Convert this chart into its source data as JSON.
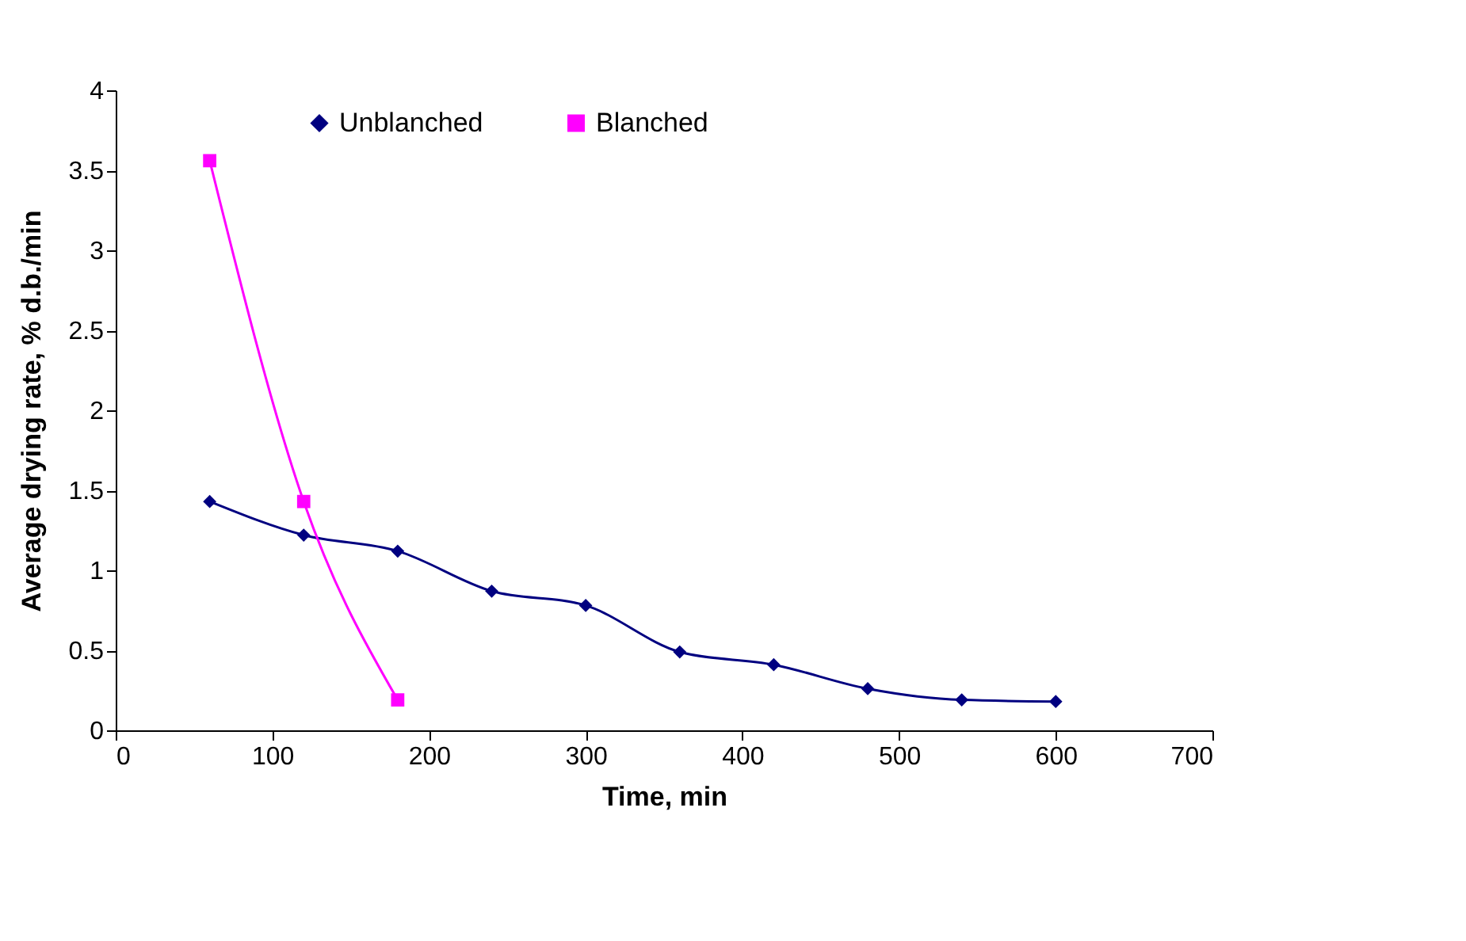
{
  "chart_data": {
    "type": "line",
    "xlabel": "Time, min",
    "ylabel": "Average drying rate,  % d.b./min",
    "x": [
      60,
      120,
      180,
      240,
      300,
      360,
      420,
      480,
      540,
      600
    ],
    "series": [
      {
        "name": "Unblanched",
        "color": "#000080",
        "marker": "diamond",
        "values": [
          1.43,
          1.22,
          1.12,
          0.87,
          0.78,
          0.49,
          0.41,
          0.26,
          0.19,
          0.18
        ]
      },
      {
        "name": "Blanched",
        "color": "#ff00ff",
        "marker": "square",
        "x": [
          60,
          120,
          180
        ],
        "values": [
          3.56,
          1.43,
          0.19
        ]
      }
    ],
    "xlim": [
      0,
      700
    ],
    "xticks": [
      0,
      100,
      200,
      300,
      400,
      500,
      600,
      700
    ],
    "ylim": [
      0,
      4
    ],
    "yticks": [
      0,
      0.5,
      1,
      1.5,
      2,
      2.5,
      3,
      3.5,
      4
    ],
    "grid": false,
    "legend": "top"
  }
}
